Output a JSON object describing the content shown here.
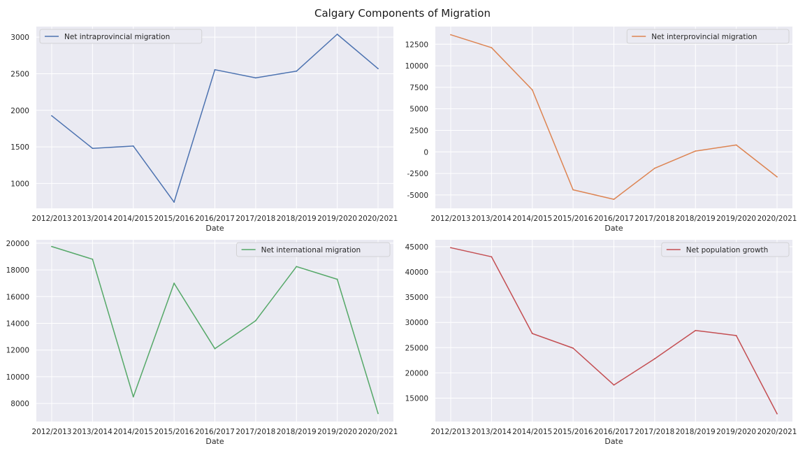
{
  "figure": {
    "title": "Calgary Components of Migration"
  },
  "chart_data": [
    {
      "type": "line",
      "categories": [
        "2012/2013",
        "2013/2014",
        "2014/2015",
        "2015/2016",
        "2016/2017",
        "2017/2018",
        "2018/2019",
        "2019/2020",
        "2020/2021"
      ],
      "series": [
        {
          "name": "Net intraprovincial migration",
          "values": [
            1925,
            1480,
            1512,
            745,
            2555,
            2443,
            2535,
            3040,
            2570
          ]
        }
      ],
      "xlabel": "Date",
      "ylabel": "",
      "ylim": [
        660,
        3145
      ],
      "yticks": [
        1000,
        1500,
        2000,
        2500,
        3000
      ],
      "color": "#4c72b0",
      "legend": "upper left",
      "grid": true
    },
    {
      "type": "line",
      "categories": [
        "2012/2013",
        "2013/2014",
        "2014/2015",
        "2015/2016",
        "2016/2017",
        "2017/2018",
        "2018/2019",
        "2019/2020",
        "2020/2021"
      ],
      "series": [
        {
          "name": "Net interprovincial migration",
          "values": [
            13600,
            12100,
            7200,
            -4400,
            -5500,
            -1900,
            100,
            800,
            -2900
          ]
        }
      ],
      "xlabel": "Date",
      "ylabel": "",
      "ylim": [
        -6550,
        14550
      ],
      "yticks": [
        -5000,
        -2500,
        0,
        2500,
        5000,
        7500,
        10000,
        12500
      ],
      "color": "#dd8452",
      "legend": "upper right",
      "grid": true
    },
    {
      "type": "line",
      "categories": [
        "2012/2013",
        "2013/2014",
        "2014/2015",
        "2015/2016",
        "2016/2017",
        "2017/2018",
        "2018/2019",
        "2019/2020",
        "2020/2021"
      ],
      "series": [
        {
          "name": "Net international migration",
          "values": [
            19750,
            18800,
            8500,
            17000,
            12100,
            14200,
            18250,
            17300,
            7250
          ]
        }
      ],
      "xlabel": "Date",
      "ylabel": "",
      "ylim": [
        6645,
        20255
      ],
      "yticks": [
        8000,
        10000,
        12000,
        14000,
        16000,
        18000,
        20000
      ],
      "color": "#55a868",
      "legend": "upper right",
      "grid": true
    },
    {
      "type": "line",
      "categories": [
        "2012/2013",
        "2013/2014",
        "2014/2015",
        "2015/2016",
        "2016/2017",
        "2017/2018",
        "2018/2019",
        "2019/2020",
        "2020/2021"
      ],
      "series": [
        {
          "name": "Net population growth",
          "values": [
            44800,
            43000,
            27800,
            24900,
            17600,
            22800,
            28400,
            27400,
            11900
          ]
        }
      ],
      "xlabel": "Date",
      "ylabel": "",
      "ylim": [
        10360,
        46370
      ],
      "yticks": [
        15000,
        20000,
        25000,
        30000,
        35000,
        40000,
        45000
      ],
      "color": "#c44e52",
      "legend": "upper right",
      "grid": true
    }
  ]
}
